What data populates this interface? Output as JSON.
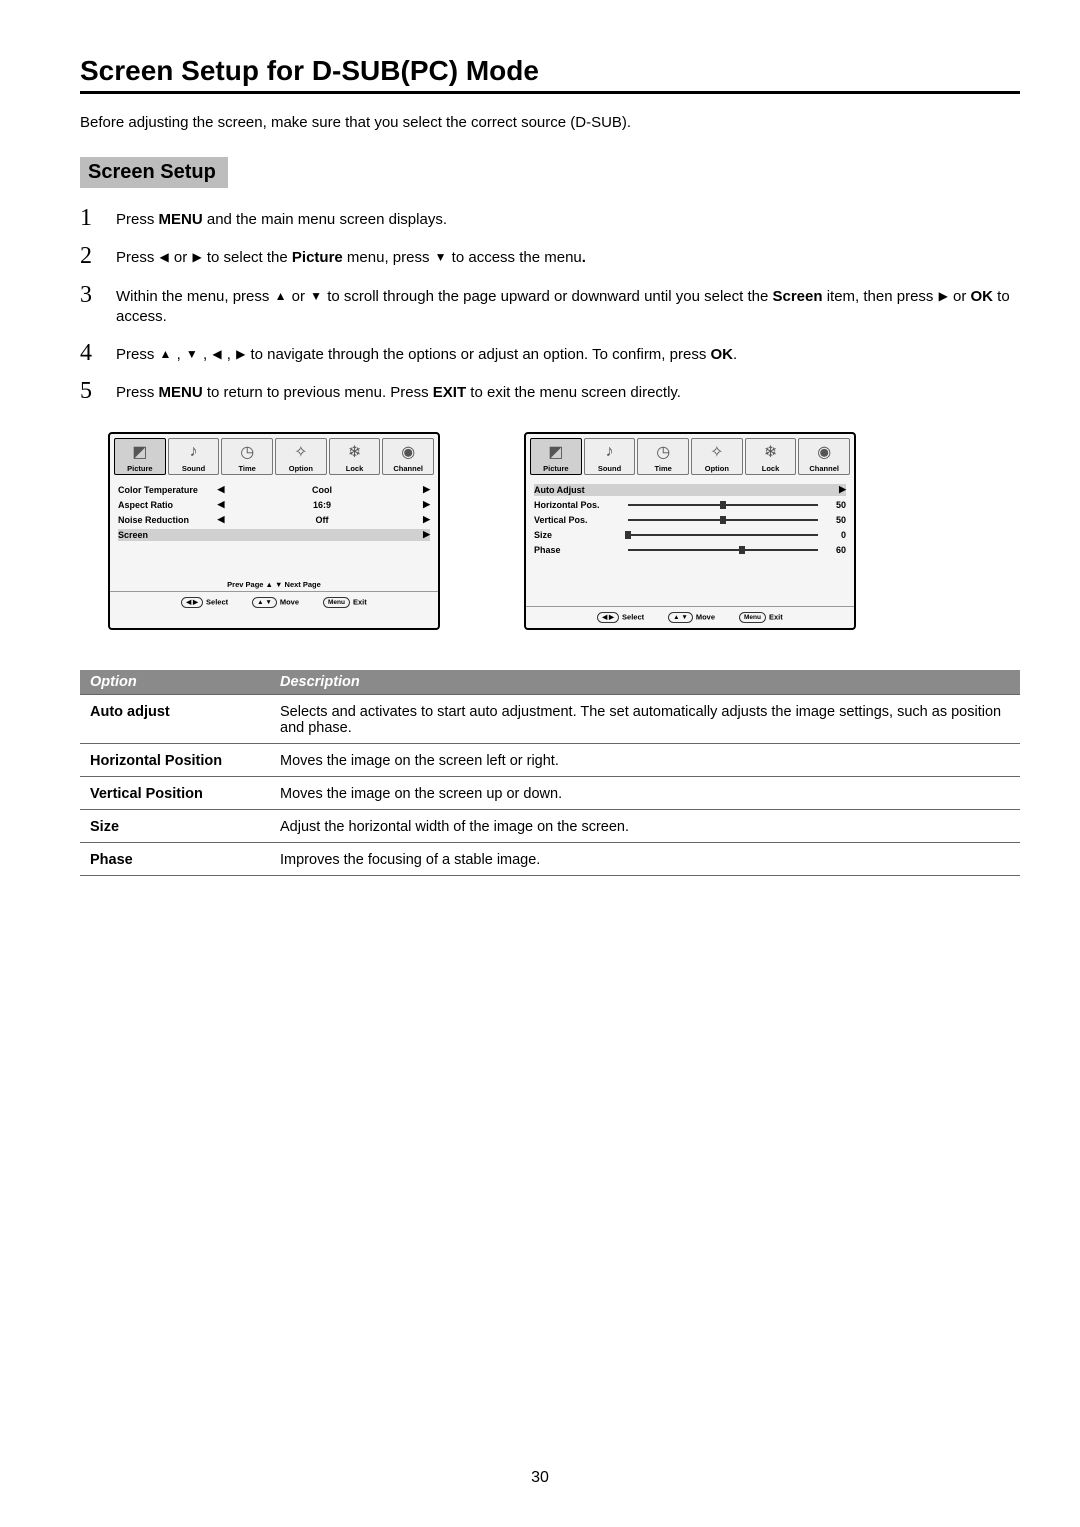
{
  "title": "Screen Setup for D-SUB(PC) Mode",
  "intro": "Before adjusting the screen, make sure that you select the correct source (D-SUB).",
  "section_heading": "Screen Setup",
  "steps": [
    {
      "num": "1",
      "html": "Press <b>MENU</b> and the main menu screen displays."
    },
    {
      "num": "2",
      "html": "Press <span class='arrow'>◀</span> or <span class='arrow'>▶</span> to select the  <b>Picture</b> menu,  press <span class='arrow'>▼</span>  to access the menu<b>.</b>"
    },
    {
      "num": "3",
      "html": "Within the menu,  press <span class='arrow'>▲</span>  or <span class='arrow'>▼</span>  to scroll through the page upward or downward until you select the <b>Screen</b> item, then press  <span class='arrow'>▶</span> or <b>OK</b> to access."
    },
    {
      "num": "4",
      "html": "Press <span class='arrow'>▲</span> , <span class='arrow'>▼</span> , <span class='arrow'>◀</span> , <span class='arrow'>▶</span>  to navigate through the options or adjust an option.  To confirm, press <b>OK</b>."
    },
    {
      "num": "5",
      "html": "Press <b>MENU</b> to return to previous menu. Press <b>EXIT</b> to exit the menu screen directly."
    }
  ],
  "osd": {
    "tabs": [
      {
        "label": "Picture",
        "icon": "◩"
      },
      {
        "label": "Sound",
        "icon": "♪"
      },
      {
        "label": "Time",
        "icon": "◷"
      },
      {
        "label": "Option",
        "icon": "✧"
      },
      {
        "label": "Lock",
        "icon": "❄"
      },
      {
        "label": "Channel",
        "icon": "◉"
      }
    ],
    "selected_tab_index": 0,
    "left_panel": {
      "items": [
        {
          "label": "Color Temperature",
          "value": "Cool",
          "left": true,
          "right": true,
          "highlighted": false
        },
        {
          "label": "Aspect Ratio",
          "value": "16:9",
          "left": true,
          "right": true,
          "highlighted": false
        },
        {
          "label": "Noise Reduction",
          "value": "Off",
          "left": true,
          "right": true,
          "highlighted": false
        },
        {
          "label": "Screen",
          "value": "",
          "left": false,
          "right": true,
          "highlighted": true
        }
      ],
      "pager": "Prev  Page ▲   ▼ Next  Page"
    },
    "right_panel": {
      "slider_items": [
        {
          "label": "Auto Adjust",
          "type": "arrow",
          "highlighted": true
        },
        {
          "label": "Horizontal Pos.",
          "type": "slider",
          "value": 50,
          "knob": 50
        },
        {
          "label": "Vertical Pos.",
          "type": "slider",
          "value": 50,
          "knob": 50
        },
        {
          "label": "Size",
          "type": "slider",
          "value": 0,
          "knob": 0
        },
        {
          "label": "Phase",
          "type": "slider",
          "value": 60,
          "knob": 60
        }
      ]
    },
    "footer": [
      {
        "btn": "◀ ▶",
        "label": "Select"
      },
      {
        "btn": "▲ ▼",
        "label": "Move"
      },
      {
        "btn": "Menu",
        "label": "Exit"
      }
    ]
  },
  "desc_table": {
    "headers": [
      "Option",
      "Description"
    ],
    "rows": [
      {
        "option": "Auto adjust",
        "desc": "Selects and activates to start auto adjustment. The set automatically adjusts the image settings, such as position and phase."
      },
      {
        "option": "Horizontal Position",
        "desc": "Moves the image on the screen left or right."
      },
      {
        "option": "Vertical Position",
        "desc": "Moves the image on the screen up or down."
      },
      {
        "option": "Size",
        "desc": "Adjust the horizontal width of the image on the screen."
      },
      {
        "option": "Phase",
        "desc": "Improves the focusing of a stable image."
      }
    ]
  },
  "page_number": "30"
}
